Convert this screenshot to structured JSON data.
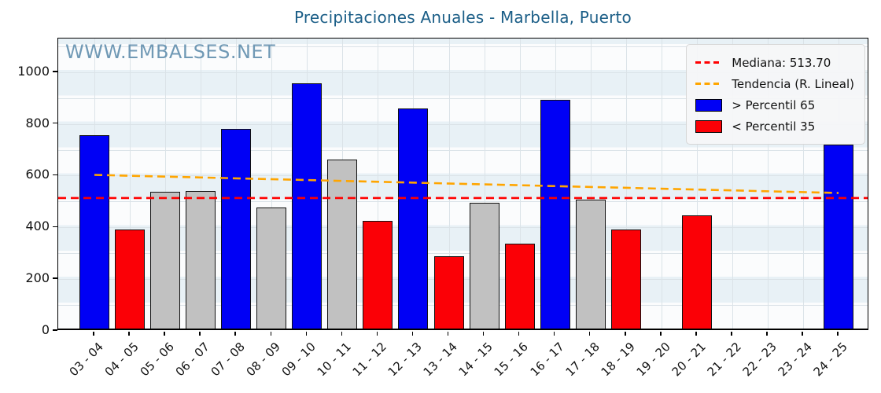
{
  "chart_data": {
    "type": "bar",
    "title": "Precipitaciones Anuales - Marbella, Puerto",
    "watermark": "WWW.EMBALSES.NET",
    "categories": [
      "03 - 04",
      "04 - 05",
      "05 - 06",
      "06 - 07",
      "07 - 08",
      "08 - 09",
      "09 - 10",
      "10 - 11",
      "11 - 12",
      "12 - 13",
      "13 - 14",
      "14 - 15",
      "15 - 16",
      "16 - 17",
      "17 - 18",
      "18 - 19",
      "19 - 20",
      "20 - 21",
      "21 - 22",
      "22 - 23",
      "23 - 24",
      "24 - 25"
    ],
    "values": [
      746,
      383,
      529,
      531,
      772,
      468,
      947,
      653,
      415,
      850,
      278,
      486,
      329,
      884,
      498,
      384,
      null,
      437,
      null,
      null,
      null,
      712
    ],
    "bar_classes": [
      "above65",
      "below35",
      "mid",
      "mid",
      "above65",
      "mid",
      "above65",
      "mid",
      "below35",
      "above65",
      "below35",
      "mid",
      "below35",
      "above65",
      "mid",
      "below35",
      null,
      "below35",
      null,
      null,
      null,
      "above65"
    ],
    "median": {
      "value": 513.7
    },
    "trend": {
      "start": 603,
      "end": 533
    },
    "legend": [
      {
        "label": "Mediana: 513.70",
        "swatch": "dashed-red"
      },
      {
        "label": "Tendencia (R. Lineal)",
        "swatch": "dashed-orange"
      },
      {
        "label": "> Percentil 65",
        "swatch": "rect-blue"
      },
      {
        "label": "< Percentil 35",
        "swatch": "rect-red"
      }
    ],
    "ylim": [
      0,
      1130
    ],
    "yticks": [
      0,
      200,
      400,
      600,
      800,
      1000
    ],
    "grid": "on",
    "legend_position": "top-right",
    "colors": {
      "above65": "#0000f5",
      "below35": "#fb0006",
      "mid": "#c1c1c1",
      "median_line": "#ff0000",
      "trend_line": "#ffa500",
      "title": "#1b5e87",
      "watermark": "#5d8cac"
    }
  }
}
